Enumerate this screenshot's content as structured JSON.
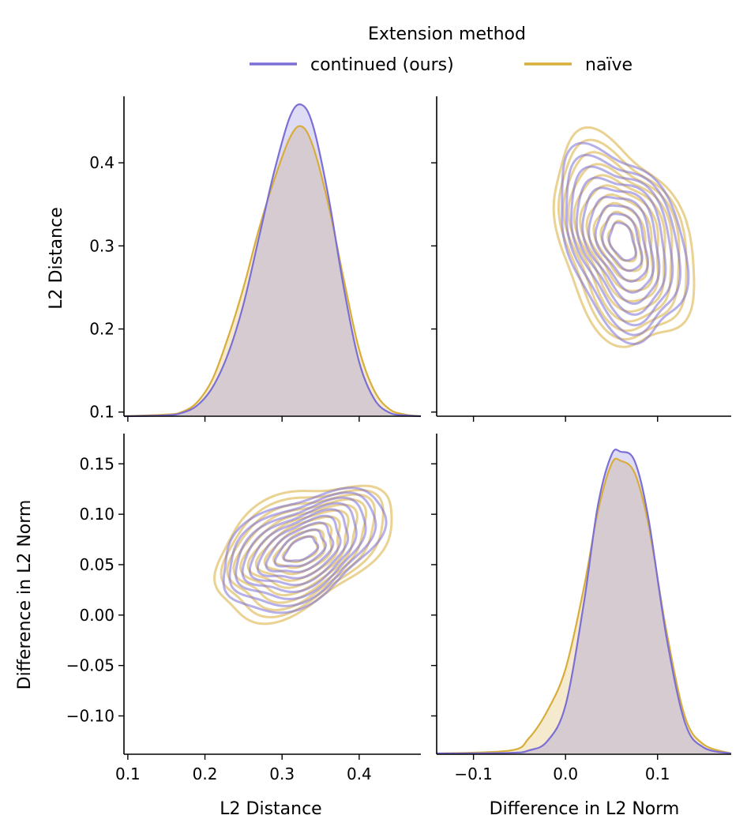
{
  "legend": {
    "title": "Extension method",
    "entries": [
      {
        "label": "continued (ours)",
        "color": "#7b6fd6"
      },
      {
        "label": "naïve",
        "color": "#d8ad3a"
      }
    ]
  },
  "axis_labels": {
    "x_left": "L2 Distance",
    "x_right": "Difference in L2 Norm",
    "y_top": "L2 Distance",
    "y_bottom": "Difference in L2 Norm"
  },
  "chart_data": {
    "type": "pairplot-kde",
    "variables": [
      "L2 Distance",
      "Difference in L2 Norm"
    ],
    "hue_title": "Extension method",
    "hue": [
      "continued (ours)",
      "naïve"
    ],
    "colors": {
      "continued (ours)": "#7b6fd6",
      "naïve": "#d8ad3a"
    },
    "axes": {
      "L2 Distance": {
        "range": [
          0.095,
          0.48
        ],
        "ticks": [
          0.1,
          0.2,
          0.3,
          0.4
        ],
        "tick_labels": [
          "0.1",
          "0.2",
          "0.3",
          "0.4"
        ]
      },
      "Difference in L2 Norm y": {
        "range": [
          -0.138,
          0.18
        ],
        "ticks": [
          -0.1,
          -0.05,
          0.0,
          0.05,
          0.1,
          0.15
        ],
        "tick_labels": [
          "−0.10",
          "−0.05",
          "0.00",
          "0.05",
          "0.10",
          "0.15"
        ]
      },
      "Difference in L2 Norm x": {
        "range": [
          -0.14,
          0.18
        ],
        "ticks": [
          -0.1,
          0.0,
          0.1
        ],
        "tick_labels": [
          "−0.1",
          "0.0",
          "0.1"
        ]
      }
    },
    "diag_l2_distance": {
      "x": [
        0.095,
        0.15,
        0.17,
        0.19,
        0.21,
        0.23,
        0.25,
        0.27,
        0.29,
        0.31,
        0.325,
        0.34,
        0.36,
        0.38,
        0.4,
        0.42,
        0.44,
        0.46,
        0.48
      ],
      "series": [
        {
          "name": "continued (ours)",
          "values": [
            0.095,
            0.096,
            0.099,
            0.108,
            0.13,
            0.17,
            0.23,
            0.31,
            0.39,
            0.455,
            0.47,
            0.445,
            0.36,
            0.25,
            0.16,
            0.115,
            0.099,
            0.096,
            0.095
          ]
        },
        {
          "name": "naïve",
          "values": [
            0.095,
            0.097,
            0.1,
            0.112,
            0.14,
            0.19,
            0.25,
            0.32,
            0.38,
            0.43,
            0.444,
            0.42,
            0.35,
            0.26,
            0.175,
            0.125,
            0.103,
            0.097,
            0.095
          ]
        }
      ]
    },
    "diag_l2_norm_diff": {
      "x": [
        -0.14,
        -0.06,
        -0.04,
        -0.02,
        0.0,
        0.02,
        0.035,
        0.05,
        0.06,
        0.075,
        0.09,
        0.11,
        0.13,
        0.15,
        0.18
      ],
      "series": [
        {
          "name": "continued (ours)",
          "density": [
            0.0,
            0.002,
            0.01,
            0.04,
            0.16,
            0.5,
            0.82,
            0.99,
            1.0,
            0.97,
            0.78,
            0.38,
            0.1,
            0.02,
            0.0
          ]
        },
        {
          "name": "naïve",
          "density": [
            0.0,
            0.01,
            0.05,
            0.14,
            0.28,
            0.55,
            0.8,
            0.96,
            0.97,
            0.93,
            0.76,
            0.4,
            0.12,
            0.03,
            0.0
          ]
        }
      ]
    },
    "joint_kde": {
      "continued (ours)": {
        "center": [
          0.325,
          0.07
        ],
        "levels": 10
      },
      "naïve": {
        "center": [
          0.325,
          0.075
        ],
        "levels": 10
      }
    }
  }
}
